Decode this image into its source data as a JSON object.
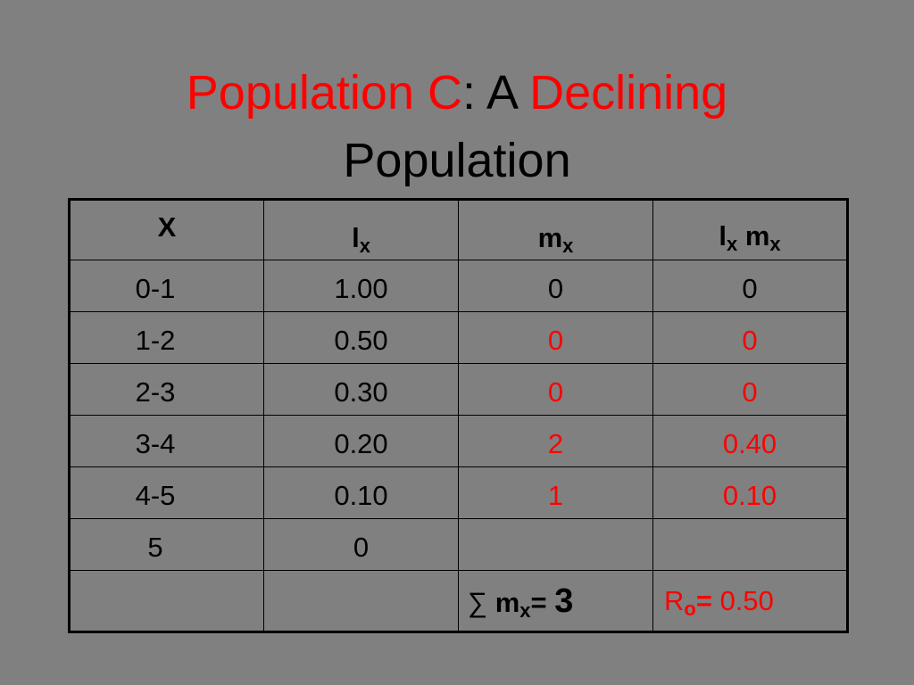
{
  "title": {
    "part1": "Population C",
    "part2": ": A ",
    "part3": "Declining",
    "line2": "Population"
  },
  "table": {
    "headers": {
      "x": "X",
      "lx_base": "l",
      "lx_sub": "x",
      "mx_base": "m",
      "mx_sub": "x",
      "lxmx_base1": "l",
      "lxmx_sub1": "x",
      "lxmx_base2": " m",
      "lxmx_sub2": "x"
    },
    "rows": [
      {
        "x": "0-1",
        "lx": "1.00",
        "mx": "0",
        "lxmx": "0",
        "red": false
      },
      {
        "x": "1-2",
        "lx": "0.50",
        "mx": "0",
        "lxmx": "0",
        "red": true
      },
      {
        "x": "2-3",
        "lx": "0.30",
        "mx": "0",
        "lxmx": "0",
        "red": true
      },
      {
        "x": "3-4",
        "lx": "0.20",
        "mx": "2",
        "lxmx": "0.40",
        "red": true
      },
      {
        "x": "4-5",
        "lx": "0.10",
        "mx": "1",
        "lxmx": "0.10",
        "red": true
      },
      {
        "x": "5",
        "lx": "0",
        "mx": "",
        "lxmx": "",
        "red": false
      }
    ],
    "summary": {
      "sum_symbol": "∑ ",
      "sum_base": "m",
      "sum_sub": "x",
      "sum_eq": "= ",
      "sum_value": "3",
      "r0_base": "R",
      "r0_sub": "o",
      "r0_eq": "=",
      "r0_value": " 0.50"
    }
  },
  "colors": {
    "background": "#808080",
    "accent_red": "#ff0000",
    "text": "#000000"
  }
}
